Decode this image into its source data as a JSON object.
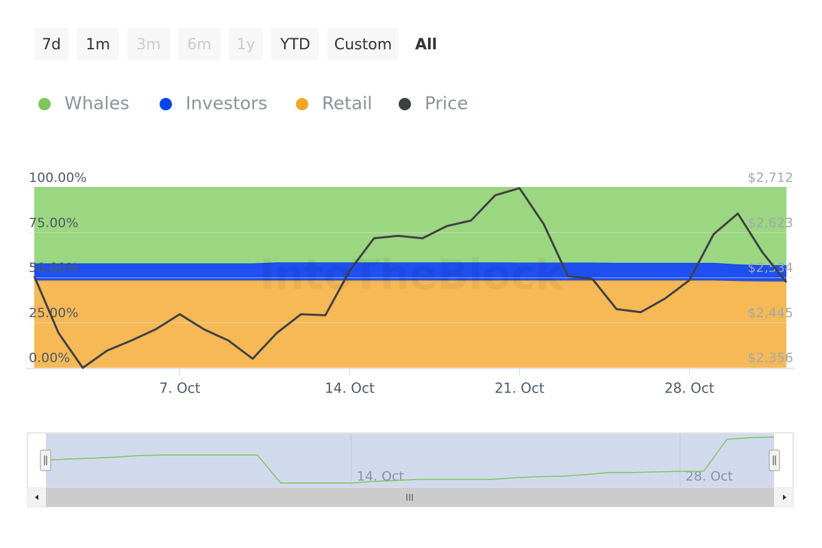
{
  "chart_data": {
    "type": "stacked-area",
    "buttons": [
      {
        "label": "7d",
        "enabled": true
      },
      {
        "label": "1m",
        "enabled": true
      },
      {
        "label": "3m",
        "enabled": false
      },
      {
        "label": "6m",
        "enabled": false
      },
      {
        "label": "1y",
        "enabled": false
      },
      {
        "label": "YTD",
        "enabled": true
      },
      {
        "label": "Custom",
        "enabled": true
      },
      {
        "label": "All",
        "enabled": true
      }
    ],
    "selected_button": 7,
    "watermark": "IntoTheBlock",
    "x": [
      1,
      2,
      3,
      4,
      5,
      6,
      7,
      8,
      9,
      10,
      11,
      12,
      13,
      14,
      15,
      16,
      17,
      18,
      19,
      20,
      21,
      22,
      23,
      24,
      25,
      26,
      27,
      28,
      29,
      30,
      31,
      32
    ],
    "xlim": [
      1,
      32
    ],
    "xticks": [
      {
        "value": 7,
        "label": "7. Oct"
      },
      {
        "value": 14,
        "label": "14. Oct"
      },
      {
        "value": 21,
        "label": "21. Oct"
      },
      {
        "value": 28,
        "label": "28. Oct"
      }
    ],
    "ylim": [
      0,
      100
    ],
    "yticks": [
      {
        "value": 0,
        "label": "0.00%"
      },
      {
        "value": 25,
        "label": "25.00%"
      },
      {
        "value": 50,
        "label": "50.00%"
      },
      {
        "value": 75,
        "label": "75.00%"
      },
      {
        "value": 100,
        "label": "100.00%"
      }
    ],
    "y2lim": [
      2356,
      2712
    ],
    "y2ticks": [
      {
        "value": 2356,
        "label": "$2,356"
      },
      {
        "value": 2445,
        "label": "$2,445"
      },
      {
        "value": 2534,
        "label": "$2,534"
      },
      {
        "value": 2623,
        "label": "$2,623"
      },
      {
        "value": 2712,
        "label": "$2,712"
      }
    ],
    "grid": true,
    "legend": "top-left",
    "series": [
      {
        "name": "Whales",
        "color": "#7cc65a",
        "fill": "#9bd680",
        "values": [
          42,
          42,
          42,
          42,
          42,
          42,
          42,
          42,
          42,
          42,
          41.5,
          41.5,
          41.5,
          41.5,
          41.5,
          41.5,
          41.5,
          41.5,
          41.5,
          41.5,
          41.6,
          41.6,
          41.6,
          41.6,
          41.7,
          41.7,
          41.7,
          41.7,
          41.7,
          42.6,
          43,
          43
        ]
      },
      {
        "name": "Investors",
        "color": "#0044ee",
        "fill": "#1f4ff0",
        "values": [
          9.5,
          9.5,
          9.5,
          9.5,
          9.5,
          9.5,
          9.5,
          9.5,
          9.5,
          9.5,
          10,
          10,
          10,
          10,
          10,
          10,
          10,
          10,
          10,
          10,
          9.9,
          9.9,
          9.9,
          9.9,
          9.8,
          9.8,
          9.8,
          9.8,
          9.8,
          9.2,
          9,
          9
        ]
      },
      {
        "name": "Retail",
        "color": "#f5a623",
        "fill": "#f6b955",
        "values": [
          48.5,
          48.5,
          48.5,
          48.5,
          48.5,
          48.5,
          48.5,
          48.5,
          48.5,
          48.5,
          48.5,
          48.5,
          48.5,
          48.5,
          48.5,
          48.5,
          48.5,
          48.5,
          48.5,
          48.5,
          48.5,
          48.5,
          48.5,
          48.5,
          48.5,
          48.5,
          48.5,
          48.5,
          48.5,
          48.2,
          48,
          48
        ]
      },
      {
        "name": "Price",
        "color": "#3d4145",
        "axis": "y2",
        "values": [
          2537,
          2425,
          2356,
          2390,
          2410,
          2432,
          2462,
          2432,
          2410,
          2374,
          2425,
          2462,
          2460,
          2548,
          2612,
          2617,
          2612,
          2636,
          2647,
          2697,
          2711,
          2640,
          2537,
          2532,
          2472,
          2466,
          2493,
          2529,
          2620,
          2661,
          2585,
          2525
        ]
      }
    ],
    "navigator": {
      "color": "#7cc65a",
      "ylim": [
        0,
        100
      ],
      "xticks": [
        {
          "value": 14,
          "label": "14. Oct"
        },
        {
          "value": 28,
          "label": "28. Oct"
        }
      ],
      "values": [
        52,
        54.5,
        56,
        58,
        61,
        62,
        62,
        62,
        62,
        62,
        9,
        9,
        9,
        9,
        12,
        14,
        16,
        16,
        16,
        16,
        19,
        21,
        22,
        25,
        29,
        29,
        30,
        31,
        31,
        92,
        95,
        96
      ]
    }
  }
}
